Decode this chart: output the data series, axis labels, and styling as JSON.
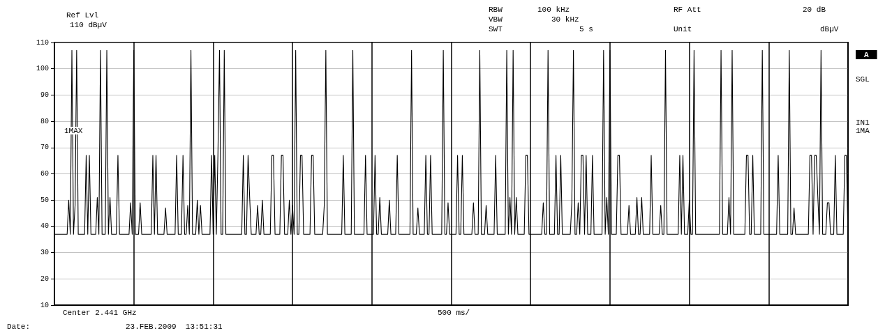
{
  "chart_data": {
    "type": "line",
    "annotations": [
      "Ref Lvl",
      "110 dBµV",
      "RBW",
      "100 kHz",
      "VBW",
      "30 kHz",
      "SWT",
      "5 s",
      "RF Att",
      "20 dB",
      "Unit",
      "dBµV",
      "A",
      "SGL",
      "IN1",
      "1MA",
      "1MAX",
      "Center 2.441 GHz",
      "500 ms/",
      "Date:",
      "23.FEB.2009  13:51:31"
    ],
    "categories": [
      null,
      null,
      null,
      null,
      null,
      null,
      null,
      null,
      null,
      null,
      null,
      null,
      null,
      null,
      null,
      null,
      null,
      null,
      null,
      null,
      null,
      null,
      null,
      null,
      null,
      null,
      null,
      null,
      null,
      null,
      null,
      null,
      null,
      null,
      null,
      null,
      null,
      null,
      null,
      null,
      null,
      null,
      null,
      null,
      null,
      null,
      null,
      null,
      null,
      null,
      null,
      null,
      null,
      null,
      null,
      null,
      null,
      null,
      null,
      null,
      null,
      null,
      null,
      null,
      null,
      null,
      null,
      null,
      null,
      null,
      null,
      null,
      null,
      null,
      null,
      null,
      null,
      null,
      null,
      null,
      null,
      null,
      null,
      null,
      null,
      null,
      null,
      null,
      null,
      null,
      null,
      null,
      null,
      null,
      null,
      null,
      null,
      null,
      null,
      null,
      null,
      null,
      null,
      null,
      null,
      null,
      null,
      null,
      null,
      null,
      null,
      null,
      null,
      null,
      null,
      null,
      null,
      null,
      null,
      null,
      null,
      null,
      null,
      null,
      null,
      null,
      null,
      null,
      null,
      null,
      null,
      null,
      null,
      null,
      null,
      null,
      null,
      null,
      null,
      null,
      null,
      null,
      null,
      null,
      null,
      null,
      null,
      null,
      null,
      null,
      null,
      null,
      null,
      null,
      null,
      null,
      null,
      null,
      null,
      null,
      null,
      null,
      null,
      null,
      null,
      null,
      null,
      null,
      null,
      null,
      null,
      null,
      null,
      null,
      null,
      null,
      null,
      null,
      null,
      null,
      null,
      null,
      null,
      null,
      null,
      null,
      null,
      null,
      null,
      null,
      null,
      null,
      null,
      null,
      null,
      null,
      null,
      null,
      null,
      null,
      null,
      null,
      null,
      null,
      null,
      null,
      null,
      null,
      null,
      null,
      null,
      null,
      null,
      null,
      null,
      null,
      null,
      null,
      null,
      null,
      null,
      null,
      null,
      null,
      null,
      null,
      null,
      null,
      null,
      null,
      null,
      null,
      null,
      null,
      null,
      null,
      null,
      null,
      null,
      null,
      null,
      null,
      null,
      null,
      null,
      null,
      null,
      null,
      null,
      null,
      null,
      null,
      null,
      null,
      null,
      null,
      null,
      null,
      null,
      null,
      null,
      null,
      null,
      null,
      null,
      null,
      null,
      null,
      null,
      null,
      null,
      null,
      null,
      null,
      null,
      null,
      null,
      null,
      null,
      null,
      null,
      null,
      null,
      null,
      null,
      null,
      null,
      null,
      null,
      null,
      null,
      null,
      null,
      null,
      null,
      null,
      null,
      null,
      null,
      null,
      null,
      null,
      null,
      null,
      null,
      null,
      null,
      null,
      null,
      null,
      null,
      null,
      null,
      null,
      null,
      null,
      null,
      null,
      null,
      null,
      null,
      null,
      null,
      null,
      null,
      null,
      null,
      null,
      null,
      null,
      null,
      null,
      null,
      null,
      null,
      null,
      null,
      null,
      null,
      null,
      null,
      null,
      null,
      null,
      null,
      null,
      null,
      null,
      null,
      null,
      null,
      null,
      null,
      null,
      null,
      null,
      null,
      null,
      null,
      null,
      null,
      null,
      null,
      null,
      null,
      null,
      null,
      null,
      null,
      null,
      null,
      null,
      null,
      null,
      null,
      null,
      null,
      null,
      null,
      null,
      null,
      null,
      null,
      null,
      null,
      null,
      null,
      null,
      null,
      null,
      null,
      null,
      null,
      null,
      null,
      null,
      null,
      null,
      null,
      null,
      null,
      null,
      null,
      null,
      null,
      null,
      null,
      null,
      null,
      null,
      null,
      null,
      null,
      null,
      null,
      null,
      null,
      null,
      null,
      null,
      null,
      null,
      null,
      null,
      null,
      null,
      null,
      null,
      null,
      null,
      null,
      null,
      null,
      null,
      null,
      null,
      null,
      null,
      null,
      null,
      null,
      null,
      null,
      null,
      null,
      null,
      null,
      null,
      null,
      null,
      null,
      null,
      null,
      null,
      null,
      null,
      null,
      null,
      null,
      null,
      null,
      null,
      null,
      null,
      null,
      null,
      null,
      null,
      null,
      null,
      null,
      null,
      null,
      null,
      null,
      null,
      null,
      null,
      null,
      null,
      null,
      null,
      null,
      null,
      null,
      null,
      null,
      null,
      null,
      null,
      null,
      null,
      null,
      null,
      null,
      null,
      null,
      null,
      null,
      null,
      null
    ],
    "ylim": [
      10,
      110
    ],
    "yticks": [
      10,
      20,
      30,
      40,
      50,
      60,
      70,
      80,
      90,
      100,
      110
    ],
    "tick_labels": "y",
    "grid": true,
    "series": [
      {
        "color": "#000000",
        "values": [
          37,
          37,
          37,
          37,
          37,
          37,
          37,
          37,
          37,
          50,
          37,
          107,
          37,
          48,
          107,
          37,
          37,
          37,
          37,
          37,
          67,
          37,
          67,
          37,
          37,
          37,
          37,
          51,
          37,
          107,
          37,
          37,
          37,
          107,
          37,
          51,
          37,
          37,
          37,
          37,
          67,
          37,
          37,
          37,
          37,
          37,
          37,
          37,
          49,
          37,
          107,
          37,
          37,
          37,
          49,
          37,
          37,
          37,
          37,
          37,
          37,
          37,
          67,
          37,
          67,
          37,
          37,
          37,
          37,
          37,
          47,
          37,
          37,
          37,
          37,
          37,
          37,
          67,
          37,
          37,
          37,
          67,
          37,
          37,
          48,
          37,
          107,
          37,
          37,
          37,
          50,
          37,
          48,
          37,
          37,
          37,
          37,
          37,
          37,
          67,
          37,
          67,
          37,
          67,
          107,
          37,
          37,
          107,
          37,
          37,
          37,
          37,
          37,
          37,
          37,
          37,
          37,
          37,
          37,
          67,
          37,
          37,
          67,
          51,
          37,
          37,
          37,
          37,
          48,
          37,
          37,
          50,
          37,
          37,
          37,
          37,
          37,
          67,
          67,
          37,
          37,
          37,
          37,
          67,
          67,
          37,
          37,
          37,
          50,
          37,
          48,
          37,
          107,
          37,
          37,
          67,
          67,
          37,
          37,
          37,
          37,
          37,
          67,
          67,
          37,
          37,
          37,
          37,
          37,
          37,
          48,
          107,
          37,
          37,
          37,
          37,
          37,
          37,
          37,
          37,
          37,
          37,
          67,
          37,
          37,
          37,
          37,
          37,
          107,
          37,
          37,
          37,
          37,
          37,
          37,
          37,
          67,
          37,
          37,
          37,
          37,
          37,
          67,
          37,
          37,
          51,
          37,
          37,
          37,
          37,
          37,
          50,
          37,
          37,
          37,
          37,
          67,
          37,
          37,
          37,
          37,
          37,
          37,
          37,
          37,
          107,
          37,
          37,
          37,
          47,
          37,
          37,
          37,
          37,
          67,
          37,
          37,
          67,
          37,
          37,
          37,
          37,
          37,
          37,
          37,
          107,
          37,
          37,
          49,
          37,
          37,
          37,
          37,
          37,
          67,
          37,
          37,
          67,
          37,
          37,
          37,
          37,
          37,
          37,
          49,
          37,
          37,
          37,
          107,
          37,
          37,
          37,
          48,
          37,
          37,
          37,
          37,
          37,
          67,
          37,
          37,
          37,
          37,
          37,
          37,
          107,
          37,
          51,
          37,
          107,
          37,
          51,
          37,
          37,
          37,
          37,
          37,
          67,
          67,
          37,
          37,
          37,
          37,
          37,
          37,
          37,
          37,
          37,
          49,
          37,
          37,
          107,
          37,
          37,
          37,
          37,
          67,
          37,
          37,
          67,
          37,
          37,
          37,
          37,
          37,
          37,
          49,
          107,
          37,
          37,
          49,
          37,
          67,
          67,
          37,
          67,
          37,
          37,
          37,
          67,
          37,
          37,
          37,
          37,
          37,
          37,
          107,
          37,
          51,
          37,
          107,
          37,
          37,
          37,
          37,
          67,
          67,
          37,
          37,
          37,
          37,
          37,
          48,
          37,
          37,
          37,
          37,
          51,
          37,
          37,
          51,
          37,
          37,
          37,
          37,
          37,
          67,
          37,
          37,
          37,
          37,
          37,
          48,
          37,
          37,
          107,
          37,
          37,
          37,
          37,
          37,
          37,
          37,
          37,
          67,
          37,
          67,
          37,
          37,
          37,
          50,
          37,
          37,
          107,
          37,
          37,
          37,
          37,
          37,
          37,
          37,
          37,
          37,
          37,
          37,
          37,
          37,
          37,
          37,
          37,
          107,
          37,
          37,
          37,
          37,
          51,
          37,
          107,
          37,
          37,
          37,
          37,
          37,
          37,
          37,
          37,
          67,
          67,
          37,
          37,
          67,
          37,
          37,
          37,
          37,
          37,
          107,
          37,
          37,
          37,
          37,
          37,
          37,
          37,
          37,
          37,
          67,
          37,
          37,
          37,
          37,
          37,
          37,
          107,
          37,
          37,
          47,
          37,
          37,
          37,
          37,
          37,
          37,
          37,
          37,
          37,
          67,
          67,
          37,
          67,
          67,
          51,
          37,
          107,
          37,
          37,
          37,
          49,
          49,
          37,
          37,
          37,
          67,
          37,
          37,
          37,
          37,
          37,
          67,
          67,
          36
        ]
      }
    ]
  }
}
